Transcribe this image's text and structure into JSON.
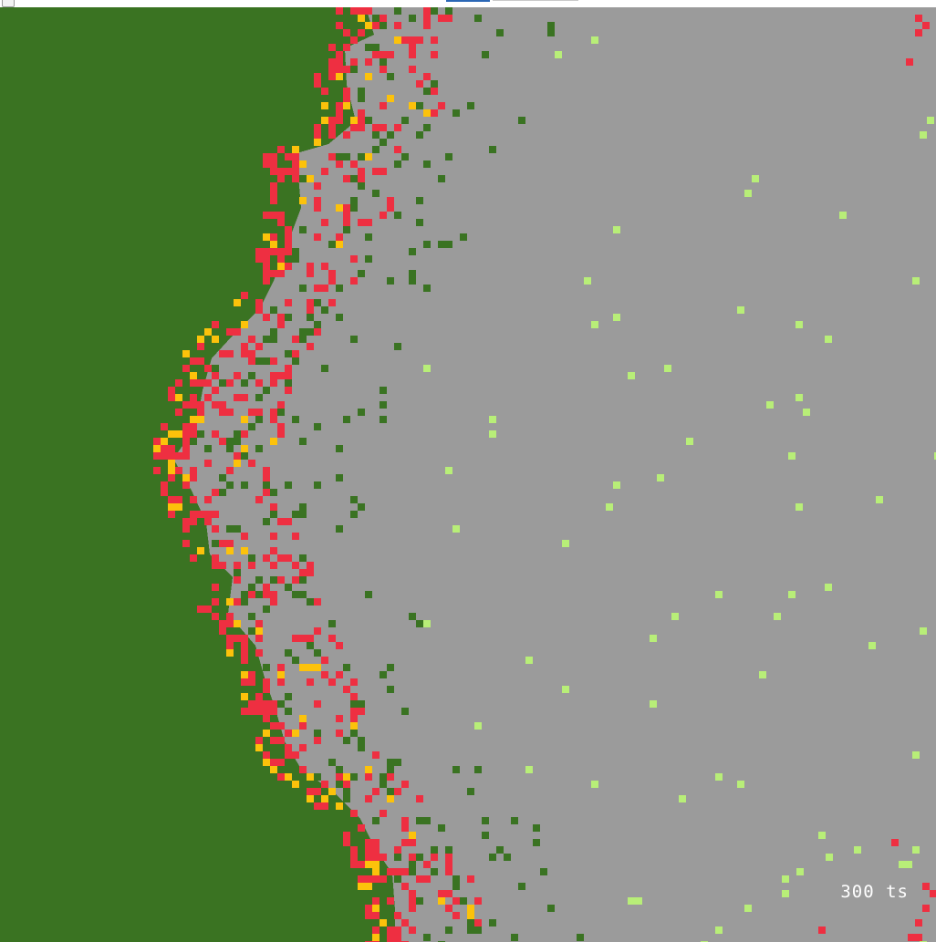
{
  "window": {
    "title": ""
  },
  "simulation": {
    "tick_label": "300 ts",
    "legend": {
      "tree": "#3a7322",
      "burnt": "#9b9b9b",
      "burning": "#ee2f41",
      "ignition": "#fcc20b",
      "sprout": "#b8ee78"
    }
  }
}
